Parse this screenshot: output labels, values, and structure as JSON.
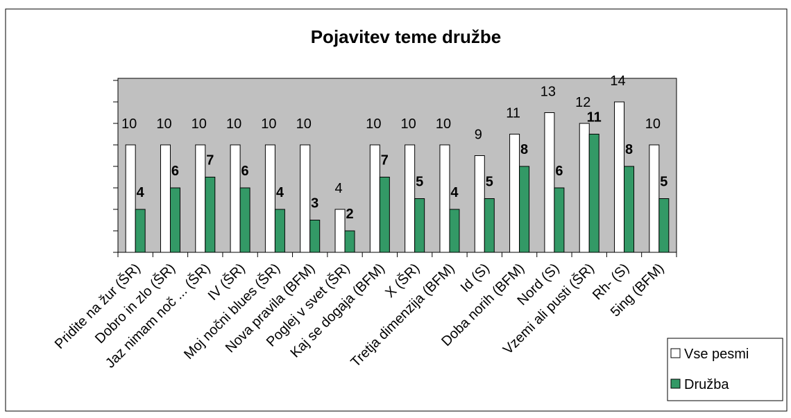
{
  "chart_data": {
    "type": "bar",
    "title": "Pojavitev teme družbe",
    "categories": [
      "Pridite na žur (ŠR)",
      "Dobro in zlo (ŠR)",
      "Jaz nimam noč ... (ŠR)",
      "IV (ŠR)",
      "Moj nočni blues (ŠR)",
      "Nova pravila (BFM)",
      "Poglej v svet (ŠR)",
      "Kaj se dogaja (BFM)",
      "X (ŠR)",
      "Tretja dimenzija (BFM)",
      "Id (S)",
      "Doba norih (BFM)",
      "Nord (S)",
      "Vzemi ali pusti (ŠR)",
      "Rh- (S)",
      "5ing (BFM)"
    ],
    "series": [
      {
        "name": "Vse pesmi",
        "color": "#ffffff",
        "values": [
          10,
          10,
          10,
          10,
          10,
          10,
          4,
          10,
          10,
          10,
          9,
          11,
          13,
          12,
          14,
          10
        ]
      },
      {
        "name": "Družba",
        "color": "#339966",
        "values": [
          4,
          6,
          7,
          6,
          4,
          3,
          2,
          7,
          5,
          4,
          5,
          8,
          6,
          11,
          8,
          5
        ]
      }
    ],
    "ylim": [
      0,
      16
    ],
    "yticks": [
      0,
      2,
      4,
      6,
      8,
      10,
      12,
      14,
      16
    ],
    "legend": "bottom-right",
    "plot_background": "#c0c0c0"
  }
}
